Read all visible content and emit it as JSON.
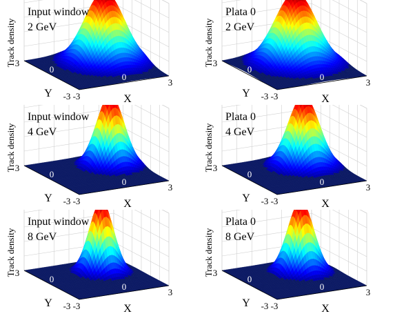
{
  "chart_data": [
    {
      "type": "surface",
      "title_line1": "Input window",
      "title_line2": "2 GeV",
      "zlabel": "Track density",
      "xlabel": "X",
      "ylabel": "Y",
      "x_ticks": [
        "-3",
        "0",
        "3"
      ],
      "y_ticks": [
        "-3",
        "0",
        "3"
      ],
      "xlim": [
        -3,
        3
      ],
      "ylim": [
        -3,
        3
      ],
      "peak": {
        "x": 0.85,
        "y": 0.5
      },
      "width": 1.15,
      "colormap": "jet",
      "grid": true
    },
    {
      "type": "surface",
      "title_line1": "Plata 0",
      "title_line2": "2 GeV",
      "zlabel": "Track density",
      "xlabel": "X",
      "ylabel": "Y",
      "x_ticks": [
        "-3",
        "0",
        "3"
      ],
      "y_ticks": [
        "-3",
        "0",
        "3"
      ],
      "xlim": [
        -3,
        3
      ],
      "ylim": [
        -3,
        3
      ],
      "peak": {
        "x": 0.4,
        "y": 0.5
      },
      "width": 1.2,
      "colormap": "jet",
      "grid": true
    },
    {
      "type": "surface",
      "title_line1": "Input window",
      "title_line2": "4 GeV",
      "zlabel": "Track density",
      "xlabel": "X",
      "ylabel": "Y",
      "x_ticks": [
        "-3",
        "0",
        "3"
      ],
      "y_ticks": [
        "-3",
        "0",
        "3"
      ],
      "xlim": [
        -3,
        3
      ],
      "ylim": [
        -3,
        3
      ],
      "peak": {
        "x": 1.3,
        "y": 0.6
      },
      "width": 0.8,
      "colormap": "jet",
      "grid": true
    },
    {
      "type": "surface",
      "title_line1": "Plata 0",
      "title_line2": "4 GeV",
      "zlabel": "Track density",
      "xlabel": "X",
      "ylabel": "Y",
      "x_ticks": [
        "-3",
        "0",
        "3"
      ],
      "y_ticks": [
        "-3",
        "0",
        "3"
      ],
      "xlim": [
        -3,
        3
      ],
      "ylim": [
        -3,
        3
      ],
      "peak": {
        "x": 1.0,
        "y": 0.6
      },
      "width": 0.9,
      "colormap": "jet",
      "grid": true
    },
    {
      "type": "surface",
      "title_line1": "Input window",
      "title_line2": "8 GeV",
      "zlabel": "Track density",
      "xlabel": "X",
      "ylabel": "Y",
      "x_ticks": [
        "-3",
        "0",
        "3"
      ],
      "y_ticks": [
        "-3",
        "0",
        "3"
      ],
      "xlim": [
        -3,
        3
      ],
      "ylim": [
        -3,
        3
      ],
      "peak": {
        "x": 0.7,
        "y": 0.6
      },
      "width": 0.7,
      "colormap": "jet",
      "grid": true
    },
    {
      "type": "surface",
      "title_line1": "Plata 0",
      "title_line2": "8 GeV",
      "zlabel": "Track density",
      "xlabel": "X",
      "ylabel": "Y",
      "x_ticks": [
        "-3",
        "0",
        "3"
      ],
      "y_ticks": [
        "-3",
        "0",
        "3"
      ],
      "xlim": [
        -3,
        3
      ],
      "ylim": [
        -3,
        3
      ],
      "peak": {
        "x": 0.8,
        "y": 0.6
      },
      "width": 0.75,
      "colormap": "jet",
      "grid": true
    }
  ],
  "colors": {
    "floor": "#0c1a64",
    "grid": "#cfcfcf",
    "text": "#000000"
  }
}
